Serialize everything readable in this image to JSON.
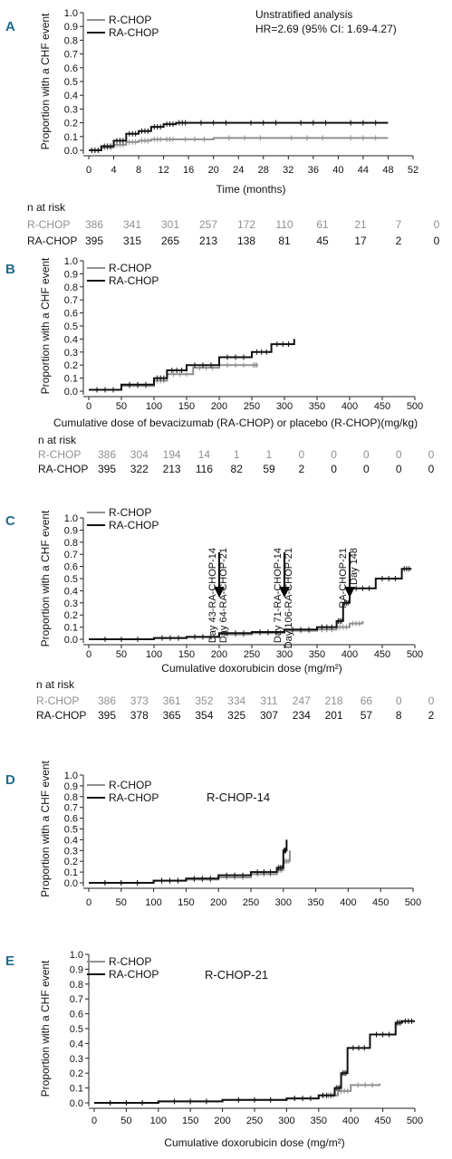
{
  "colors": {
    "rchop": "#909090",
    "rachop": "#111111",
    "panel_letter": "#1f6a8c",
    "arrow": "#000000"
  },
  "chart_data": [
    {
      "panel": "A",
      "type": "line",
      "ylabel": "Proportion with a CHF event",
      "xlabel": "Time (months)",
      "x_ticks": [
        0,
        4,
        8,
        12,
        16,
        20,
        24,
        28,
        32,
        36,
        40,
        44,
        48,
        52
      ],
      "y_ticks": [
        0.0,
        0.1,
        0.2,
        0.3,
        0.4,
        0.5,
        0.6,
        0.7,
        0.8,
        0.9,
        1.0
      ],
      "xlim": [
        0,
        52
      ],
      "ylim": [
        0,
        1
      ],
      "annotations": [
        "Unstratified analysis",
        "HR=2.69 (95% CI: 1.69-4.27)"
      ],
      "series": [
        {
          "name": "R-CHOP",
          "x": [
            0,
            2,
            4,
            6,
            8,
            10,
            12,
            14,
            20,
            30,
            40,
            48
          ],
          "y": [
            0,
            0.02,
            0.04,
            0.06,
            0.07,
            0.08,
            0.08,
            0.08,
            0.09,
            0.09,
            0.09,
            0.09
          ]
        },
        {
          "name": "RA-CHOP",
          "x": [
            0,
            2,
            4,
            6,
            8,
            10,
            12,
            14,
            16,
            24,
            32,
            40,
            48
          ],
          "y": [
            0,
            0.03,
            0.07,
            0.12,
            0.14,
            0.17,
            0.19,
            0.2,
            0.2,
            0.2,
            0.2,
            0.2,
            0.2
          ]
        }
      ],
      "risk_table": {
        "title": "n at risk",
        "rows": [
          {
            "label": "R-CHOP",
            "values": [
              "386",
              "341",
              "301",
              "257",
              "172",
              "110",
              "61",
              "21",
              "7",
              "0"
            ]
          },
          {
            "label": "RA-CHOP",
            "values": [
              "395",
              "315",
              "265",
              "213",
              "138",
              "81",
              "45",
              "17",
              "2",
              "0"
            ]
          }
        ]
      }
    },
    {
      "panel": "B",
      "type": "line",
      "ylabel": "Proportion with a CHF event",
      "xlabel": "Cumulative dose of bevacizumab (RA-CHOP) or placebo (R-CHOP)(mg/kg)",
      "x_ticks": [
        0,
        50,
        100,
        150,
        200,
        250,
        300,
        350,
        400,
        450,
        500
      ],
      "y_ticks": [
        0.0,
        0.1,
        0.2,
        0.3,
        0.4,
        0.5,
        0.6,
        0.7,
        0.8,
        0.9,
        1.0
      ],
      "xlim": [
        0,
        500
      ],
      "ylim": [
        0,
        1
      ],
      "series": [
        {
          "name": "R-CHOP",
          "x": [
            0,
            50,
            100,
            120,
            160,
            200,
            250,
            260
          ],
          "y": [
            0.01,
            0.04,
            0.08,
            0.13,
            0.18,
            0.2,
            0.2,
            0.2
          ]
        },
        {
          "name": "RA-CHOP",
          "x": [
            0,
            50,
            100,
            120,
            150,
            200,
            250,
            280,
            315
          ],
          "y": [
            0.01,
            0.05,
            0.1,
            0.16,
            0.2,
            0.26,
            0.3,
            0.36,
            0.4
          ]
        }
      ],
      "risk_table": {
        "title": "n at risk",
        "rows": [
          {
            "label": "R-CHOP",
            "values": [
              "386",
              "304",
              "194",
              "14",
              "1",
              "1",
              "0",
              "0",
              "0",
              "0",
              "0"
            ]
          },
          {
            "label": "RA-CHOP",
            "values": [
              "395",
              "322",
              "213",
              "116",
              "82",
              "59",
              "2",
              "0",
              "0",
              "0",
              "0"
            ]
          }
        ]
      }
    },
    {
      "panel": "C",
      "type": "line",
      "ylabel": "Proportion with a CHF event",
      "xlabel": "Cumulative doxorubicin dose (mg/m²)",
      "x_ticks": [
        0,
        50,
        100,
        150,
        200,
        250,
        300,
        350,
        400,
        450,
        500
      ],
      "y_ticks": [
        0.0,
        0.1,
        0.2,
        0.3,
        0.4,
        0.5,
        0.6,
        0.7,
        0.8,
        0.9,
        1.0
      ],
      "xlim": [
        0,
        500
      ],
      "ylim": [
        0,
        1
      ],
      "arrows": [
        {
          "x": 200,
          "lines": [
            "Day 43-RA-CHOP-14",
            "Day 64-RA-CHOP-21"
          ]
        },
        {
          "x": 300,
          "lines": [
            "Day 71-RA-CHOP-14",
            "Day 106-RA-CHOP-21"
          ]
        },
        {
          "x": 400,
          "lines": [
            "RA-CHOP-21",
            "Day 148"
          ]
        }
      ],
      "series": [
        {
          "name": "R-CHOP",
          "x": [
            0,
            100,
            150,
            200,
            250,
            300,
            350,
            380,
            400,
            420
          ],
          "y": [
            0,
            0.01,
            0.02,
            0.04,
            0.05,
            0.07,
            0.08,
            0.1,
            0.13,
            0.15
          ]
        },
        {
          "name": "RA-CHOP",
          "x": [
            0,
            100,
            150,
            200,
            250,
            300,
            350,
            380,
            390,
            400,
            440,
            480,
            495
          ],
          "y": [
            0,
            0.01,
            0.02,
            0.05,
            0.06,
            0.08,
            0.1,
            0.15,
            0.3,
            0.42,
            0.5,
            0.58,
            0.58
          ]
        }
      ],
      "risk_table": {
        "title": "n at risk",
        "rows": [
          {
            "label": "R-CHOP",
            "values": [
              "386",
              "373",
              "361",
              "352",
              "334",
              "311",
              "247",
              "218",
              "66",
              "0",
              "0"
            ]
          },
          {
            "label": "RA-CHOP",
            "values": [
              "395",
              "378",
              "365",
              "354",
              "325",
              "307",
              "234",
              "201",
              "57",
              "8",
              "2"
            ]
          }
        ]
      }
    },
    {
      "panel": "D",
      "type": "line",
      "ylabel": "Proportion with a CHF event",
      "xlabel": "",
      "subtitle": "R-CHOP-14",
      "x_ticks": [
        0,
        50,
        100,
        150,
        200,
        250,
        300,
        350,
        400,
        450,
        500
      ],
      "y_ticks": [
        0.0,
        0.1,
        0.2,
        0.3,
        0.4,
        0.5,
        0.6,
        0.7,
        0.8,
        0.9,
        1.0
      ],
      "xlim": [
        0,
        500
      ],
      "ylim": [
        0,
        1
      ],
      "series": [
        {
          "name": "R-CHOP",
          "x": [
            0,
            100,
            150,
            200,
            250,
            290,
            300,
            310
          ],
          "y": [
            0,
            0.02,
            0.03,
            0.05,
            0.08,
            0.12,
            0.2,
            0.3
          ]
        },
        {
          "name": "RA-CHOP",
          "x": [
            0,
            100,
            150,
            200,
            250,
            290,
            300,
            305
          ],
          "y": [
            0,
            0.02,
            0.04,
            0.07,
            0.1,
            0.14,
            0.3,
            0.4
          ]
        }
      ]
    },
    {
      "panel": "E",
      "type": "line",
      "ylabel": "Proportion with a CHF event",
      "xlabel": "Cumulative doxorubicin dose (mg/m²)",
      "subtitle": "R-CHOP-21",
      "x_ticks": [
        0,
        50,
        100,
        150,
        200,
        250,
        300,
        350,
        400,
        450,
        500
      ],
      "y_ticks": [
        0.0,
        0.1,
        0.2,
        0.3,
        0.4,
        0.5,
        0.6,
        0.7,
        0.8,
        0.9,
        1.0
      ],
      "xlim": [
        0,
        500
      ],
      "ylim": [
        0,
        1
      ],
      "series": [
        {
          "name": "R-CHOP",
          "x": [
            0,
            100,
            200,
            300,
            350,
            380,
            400,
            445
          ],
          "y": [
            0,
            0.01,
            0.02,
            0.03,
            0.05,
            0.08,
            0.12,
            0.13
          ]
        },
        {
          "name": "RA-CHOP",
          "x": [
            0,
            100,
            200,
            300,
            350,
            375,
            385,
            395,
            430,
            470,
            480,
            500
          ],
          "y": [
            0,
            0.01,
            0.02,
            0.03,
            0.05,
            0.1,
            0.2,
            0.37,
            0.46,
            0.54,
            0.55,
            0.55
          ]
        }
      ]
    }
  ]
}
